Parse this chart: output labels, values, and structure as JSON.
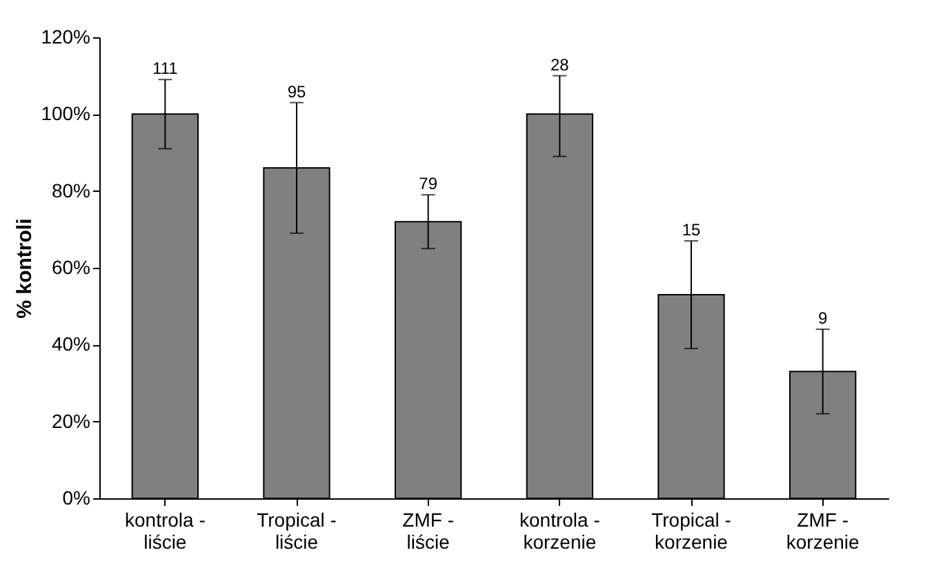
{
  "chart_data": {
    "type": "bar",
    "ylabel": "% kontroli",
    "categories": [
      "kontrola -\nliście",
      "Tropical -\nliście",
      "ZMF -\nliście",
      "kontrola -\nkorzenie",
      "Tropical -\nkorzenie",
      "ZMF -\nkorzenie"
    ],
    "values": [
      100,
      86,
      72,
      100,
      53,
      33
    ],
    "errors": [
      [
        91,
        109
      ],
      [
        69,
        103
      ],
      [
        65,
        79
      ],
      [
        89,
        110
      ],
      [
        39,
        67
      ],
      [
        22,
        44
      ]
    ],
    "annotations": [
      {
        "text": "111",
        "x": "kontrola -\nliście",
        "y": 109
      },
      {
        "text": "95",
        "x": "Tropical -\nliście",
        "y": 103
      },
      {
        "text": "79",
        "x": "ZMF -\nliście",
        "y": 79
      },
      {
        "text": "28",
        "x": "kontrola -\nkorzenie",
        "y": 110
      },
      {
        "text": "15",
        "x": "Tropical -\nkorzenie",
        "y": 67
      },
      {
        "text": "9",
        "x": "ZMF -\nkorzenie",
        "y": 44
      }
    ],
    "color": "#808080",
    "ylim": [
      0,
      120
    ],
    "yticks": [
      {
        "value": 0,
        "label": "0%"
      },
      {
        "value": 20,
        "label": "20%"
      },
      {
        "value": 40,
        "label": "40%"
      },
      {
        "value": 60,
        "label": "60%"
      },
      {
        "value": 80,
        "label": "80%"
      },
      {
        "value": 100,
        "label": "100%"
      },
      {
        "value": 120,
        "label": "120%"
      }
    ],
    "grid": false
  }
}
